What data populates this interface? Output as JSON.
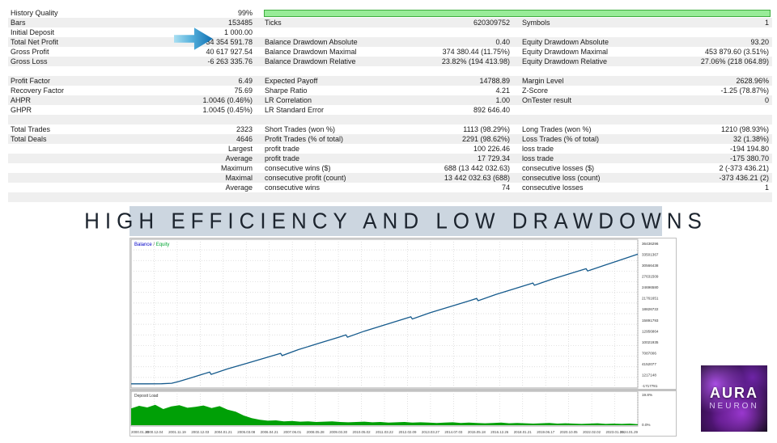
{
  "colors": {
    "row_stripe": "#efefef",
    "progress_green_fill": "#98ec98",
    "progress_green_border": "#3fae3f",
    "arrow_blue_light": "#a9dff2",
    "arrow_blue_dark": "#0e6fb2",
    "banner_bg": "#ccd6e0",
    "banner_text": "#1c242e",
    "balance_line": "#155a8c",
    "legend_balance": "#0000c8",
    "legend_equity": "#00a532",
    "deposit_fill": "#00a006",
    "grid": "#d4d4d4",
    "plot_border": "#a6a6a6"
  },
  "stats_table": {
    "rows": [
      {
        "progress": true,
        "cells": [
          "History Quality",
          "99%",
          "",
          "",
          "",
          ""
        ]
      },
      {
        "cells": [
          "Bars",
          "153485",
          "Ticks",
          "620309752",
          "Symbols",
          "1"
        ]
      },
      {
        "cells": [
          "Initial Deposit",
          "1 000.00",
          "",
          "",
          "",
          ""
        ]
      },
      {
        "cells": [
          "Total Net Profit",
          "34 354 591.78",
          "Balance Drawdown Absolute",
          "0.40",
          "Equity Drawdown Absolute",
          "93.20"
        ]
      },
      {
        "cells": [
          "Gross Profit",
          "40 617 927.54",
          "Balance Drawdown Maximal",
          "374 380.44 (11.75%)",
          "Equity Drawdown Maximal",
          "453 879.60 (3.51%)"
        ]
      },
      {
        "cells": [
          "Gross Loss",
          "-6 263 335.76",
          "Balance Drawdown Relative",
          "23.82% (194 413.98)",
          "Equity Drawdown Relative",
          "27.06% (218 064.89)"
        ]
      },
      {
        "spacer": true,
        "cells": [
          "",
          "",
          "",
          "",
          "",
          ""
        ]
      },
      {
        "cells": [
          "Profit Factor",
          "6.49",
          "Expected Payoff",
          "14788.89",
          "Margin Level",
          "2628.96%"
        ]
      },
      {
        "cells": [
          "Recovery Factor",
          "75.69",
          "Sharpe Ratio",
          "4.21",
          "Z-Score",
          "-1.25 (78.87%)"
        ]
      },
      {
        "cells": [
          "AHPR",
          "1.0046 (0.46%)",
          "LR Correlation",
          "1.00",
          "OnTester result",
          "0"
        ]
      },
      {
        "cells": [
          "GHPR",
          "1.0045 (0.45%)",
          "LR Standard Error",
          "892 646.40",
          "",
          ""
        ]
      },
      {
        "spacer": true,
        "cells": [
          "",
          "",
          "",
          "",
          "",
          ""
        ]
      },
      {
        "cells": [
          "Total Trades",
          "2323",
          "Short Trades (won %)",
          "1113 (98.29%)",
          "Long Trades (won %)",
          "1210 (98.93%)"
        ]
      },
      {
        "cells": [
          "Total Deals",
          "4646",
          "Profit Trades (% of total)",
          "2291 (98.62%)",
          "Loss Trades (% of total)",
          "32 (1.38%)"
        ]
      },
      {
        "cells": [
          "",
          "Largest",
          "profit trade",
          "100 226.46",
          "loss trade",
          "-194 194.80"
        ]
      },
      {
        "cells": [
          "",
          "Average",
          "profit trade",
          "17 729.34",
          "loss trade",
          "-175 380.70"
        ]
      },
      {
        "cells": [
          "",
          "Maximum",
          "consecutive wins ($)",
          "688 (13 442 032.63)",
          "consecutive losses ($)",
          "2 (-373 436.21)"
        ]
      },
      {
        "cells": [
          "",
          "Maximal",
          "consecutive profit (count)",
          "13 442 032.63 (688)",
          "consecutive loss (count)",
          "-373 436.21 (2)"
        ]
      },
      {
        "cells": [
          "",
          "Average",
          "consecutive wins",
          "74",
          "consecutive losses",
          "1"
        ]
      },
      {
        "spacer": true,
        "cells": [
          "",
          "",
          "",
          "",
          "",
          ""
        ]
      }
    ]
  },
  "banner": {
    "title": "HIGH EFFICIENCY AND LOW DRAWDOWNS"
  },
  "chart_data": {
    "type": "line",
    "title": "Balance / Equity",
    "legend": {
      "balance": "Balance",
      "separator": "/",
      "equity": "Equity"
    },
    "y_axis_labels": [
      "36436296",
      "33501367",
      "30566438",
      "27631509",
      "24696580",
      "21761651",
      "18826722",
      "15891793",
      "12956864",
      "10021935",
      "7087006",
      "4152077",
      "1217148",
      "-1717781"
    ],
    "x_axis_labels": [
      "2000.01.20",
      "2000.12.04",
      "2001.11.19",
      "2002.12.03",
      "2004.01.21",
      "2005.03.08",
      "2006.04.21",
      "2007.06.01",
      "2008.05.28",
      "2009.03.30",
      "2010.05.02",
      "2011.03.22",
      "2012.02.09",
      "2013.03.27",
      "2014.07.03",
      "2015.05.18",
      "2016.12.26",
      "2018.01.21",
      "2019.06.17",
      "2020.10.05",
      "2022.02.02",
      "2023.01.15",
      "2024.01.29"
    ],
    "balance_curve": {
      "start_value": 1000.0,
      "end_value": 34354591.78,
      "points_norm": [
        [
          0.0,
          0.972
        ],
        [
          0.03,
          0.972
        ],
        [
          0.06,
          0.971
        ],
        [
          0.08,
          0.968
        ],
        [
          0.095,
          0.955
        ],
        [
          0.115,
          0.935
        ],
        [
          0.14,
          0.908
        ],
        [
          0.155,
          0.893
        ],
        [
          0.158,
          0.908
        ],
        [
          0.19,
          0.872
        ],
        [
          0.23,
          0.832
        ],
        [
          0.27,
          0.792
        ],
        [
          0.295,
          0.767
        ],
        [
          0.298,
          0.782
        ],
        [
          0.33,
          0.742
        ],
        [
          0.37,
          0.7
        ],
        [
          0.41,
          0.658
        ],
        [
          0.424,
          0.643
        ],
        [
          0.427,
          0.658
        ],
        [
          0.46,
          0.618
        ],
        [
          0.5,
          0.576
        ],
        [
          0.54,
          0.534
        ],
        [
          0.552,
          0.521
        ],
        [
          0.555,
          0.536
        ],
        [
          0.59,
          0.494
        ],
        [
          0.63,
          0.452
        ],
        [
          0.668,
          0.413
        ],
        [
          0.682,
          0.398
        ],
        [
          0.685,
          0.413
        ],
        [
          0.72,
          0.371
        ],
        [
          0.76,
          0.329
        ],
        [
          0.793,
          0.294
        ],
        [
          0.796,
          0.309
        ],
        [
          0.83,
          0.269
        ],
        [
          0.868,
          0.229
        ],
        [
          0.898,
          0.198
        ],
        [
          0.901,
          0.213
        ],
        [
          0.935,
          0.174
        ],
        [
          0.965,
          0.14
        ],
        [
          1.0,
          0.1
        ]
      ]
    },
    "subchart": {
      "label": "Deposit Load",
      "y_max_label": "19.8%",
      "y_min_label": "0.0%",
      "values_norm": [
        0.52,
        0.6,
        0.55,
        0.63,
        0.5,
        0.58,
        0.62,
        0.54,
        0.57,
        0.61,
        0.53,
        0.59,
        0.48,
        0.42,
        0.3,
        0.22,
        0.17,
        0.14,
        0.15,
        0.12,
        0.13,
        0.11,
        0.12,
        0.1,
        0.11,
        0.12,
        0.1,
        0.09,
        0.1,
        0.11,
        0.09,
        0.1,
        0.08,
        0.09,
        0.1,
        0.08,
        0.09,
        0.08,
        0.07,
        0.08,
        0.09,
        0.07,
        0.08,
        0.07,
        0.06,
        0.07,
        0.08,
        0.06,
        0.07,
        0.06,
        0.05,
        0.06,
        0.07,
        0.05,
        0.06,
        0.05,
        0.04,
        0.05,
        0.06,
        0.04,
        0.05,
        0.04,
        0.05,
        0.03
      ]
    },
    "grid": true,
    "legend_position": "top-left"
  },
  "logo": {
    "line1": "AURA",
    "line2": "NEURON"
  }
}
